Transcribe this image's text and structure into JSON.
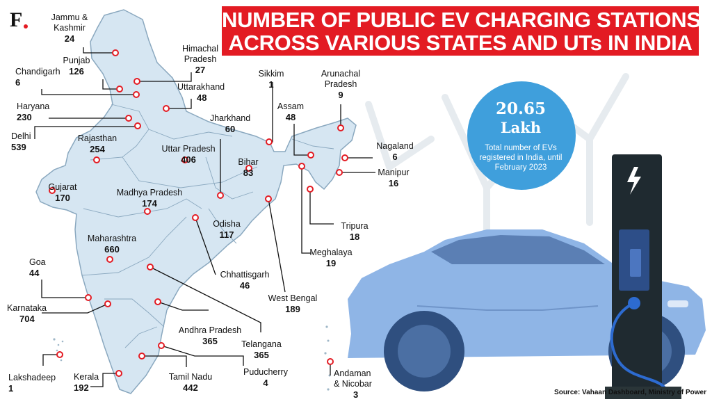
{
  "header": {
    "logo": "F",
    "title_line1": "NUMBER OF PUBLIC EV CHARGING STATIONS",
    "title_line2": "ACROSS VARIOUS STATES AND UTs IN INDIA"
  },
  "states": [
    {
      "id": "jammu-kashmir",
      "name": "Jammu &\nKashmir",
      "value": "24"
    },
    {
      "id": "himachal-pradesh",
      "name": "Himachal\nPradesh",
      "value": "27"
    },
    {
      "id": "punjab",
      "name": "Punjab",
      "value": "126"
    },
    {
      "id": "chandigarh",
      "name": "Chandigarh",
      "value": "6"
    },
    {
      "id": "uttarakhand",
      "name": "Uttarakhand",
      "value": "48"
    },
    {
      "id": "haryana",
      "name": "Haryana",
      "value": "230"
    },
    {
      "id": "delhi",
      "name": "Delhi",
      "value": "539"
    },
    {
      "id": "rajasthan",
      "name": "Rajasthan",
      "value": "254"
    },
    {
      "id": "uttar-pradesh",
      "name": "Uttar Pradesh",
      "value": "406"
    },
    {
      "id": "jharkhand",
      "name": "Jharkhand",
      "value": "60"
    },
    {
      "id": "bihar",
      "name": "Bihar",
      "value": "83"
    },
    {
      "id": "gujarat",
      "name": "Gujarat",
      "value": "170"
    },
    {
      "id": "madhya-pradesh",
      "name": "Madhya Pradesh",
      "value": "174"
    },
    {
      "id": "odisha",
      "name": "Odisha",
      "value": "117"
    },
    {
      "id": "maharashtra",
      "name": "Maharashtra",
      "value": "660"
    },
    {
      "id": "chhattisgarh",
      "name": "Chhattisgarh",
      "value": "46"
    },
    {
      "id": "goa",
      "name": "Goa",
      "value": "44"
    },
    {
      "id": "karnataka",
      "name": "Karnataka",
      "value": "704"
    },
    {
      "id": "andhra-pradesh",
      "name": "Andhra Pradesh",
      "value": "365"
    },
    {
      "id": "telangana",
      "name": "Telangana",
      "value": "365"
    },
    {
      "id": "west-bengal",
      "name": "West Bengal",
      "value": "189"
    },
    {
      "id": "lakshadeep",
      "name": "Lakshadeep",
      "value": "1"
    },
    {
      "id": "kerala",
      "name": "Kerala",
      "value": "192"
    },
    {
      "id": "tamil-nadu",
      "name": "Tamil Nadu",
      "value": "442"
    },
    {
      "id": "puducherry",
      "name": "Puducherry",
      "value": "4"
    },
    {
      "id": "sikkim",
      "name": "Sikkim",
      "value": "1"
    },
    {
      "id": "arunachal-pradesh",
      "name": "Arunachal\nPradesh",
      "value": "9"
    },
    {
      "id": "assam",
      "name": "Assam",
      "value": "48"
    },
    {
      "id": "nagaland",
      "name": "Nagaland",
      "value": "6"
    },
    {
      "id": "manipur",
      "name": "Manipur",
      "value": "16"
    },
    {
      "id": "tripura",
      "name": "Tripura",
      "value": "18"
    },
    {
      "id": "meghalaya",
      "name": "Meghalaya",
      "value": "19"
    },
    {
      "id": "andaman-nicobar",
      "name": "Andaman\n& Nicobar",
      "value": "3"
    }
  ],
  "highlight": {
    "number": "20.65",
    "unit": "Lakh",
    "description": "Total number of EVs registered in India, until February 2023"
  },
  "source": "Source: Vahaan Dashboard, Ministry of Power",
  "colors": {
    "title_bg": "#e31b23",
    "map_fill": "#d6e6f2",
    "marker": "#e31b23",
    "bubble": "#3f9fdc",
    "car": "#8fb5e6",
    "charger": "#1f2a30"
  }
}
